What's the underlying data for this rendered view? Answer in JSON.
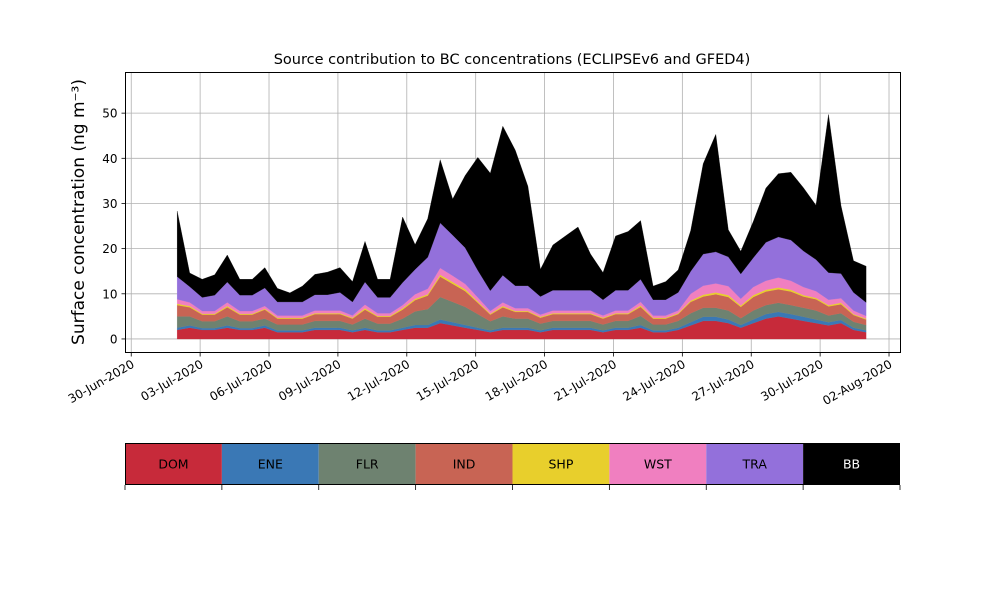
{
  "chart_data": {
    "type": "area",
    "stacked": true,
    "title": "Source contribution to BC concentrations (ECLIPSEv6 and GFED4)",
    "ylabel": "Surface concentration (ng m⁻³)",
    "xlabel": "",
    "x_start": "2020-07-02",
    "x_end": "2020-08-01",
    "xlim": [
      "2020-06-29T18:00",
      "2020-08-02T12:00"
    ],
    "ylim": [
      -3,
      59
    ],
    "xticks": [
      "30-Jun-2020",
      "03-Jul-2020",
      "06-Jul-2020",
      "09-Jul-2020",
      "12-Jul-2020",
      "15-Jul-2020",
      "18-Jul-2020",
      "21-Jul-2020",
      "24-Jul-2020",
      "27-Jul-2020",
      "30-Jul-2020",
      "02-Aug-2020"
    ],
    "yticks": [
      0,
      10,
      20,
      30,
      40,
      50
    ],
    "grid": true,
    "legend_position": "bottom",
    "series": [
      {
        "name": "DOM",
        "color": "#c72a3a",
        "values": [
          2,
          2.5,
          2,
          2,
          2.5,
          2,
          2,
          2.5,
          1.5,
          1.5,
          1.5,
          2,
          2,
          2,
          1.5,
          2,
          1.5,
          1.5,
          2,
          2.5,
          2.5,
          3.5,
          3,
          2.5,
          2,
          1.5,
          2,
          2,
          2,
          1.5,
          2,
          2,
          2,
          2,
          1.5,
          2,
          2,
          2.5,
          1.5,
          1.5,
          2,
          3,
          4,
          4,
          3.5,
          2.5,
          3.5,
          4.5,
          5,
          4.5,
          4,
          3.5,
          3,
          3.5,
          2,
          1.5
        ]
      },
      {
        "name": "ENE",
        "color": "#3a78b5",
        "values": [
          0.5,
          0.5,
          0.4,
          0.4,
          0.5,
          0.4,
          0.4,
          0.5,
          0.4,
          0.4,
          0.4,
          0.5,
          0.5,
          0.5,
          0.4,
          0.5,
          0.4,
          0.4,
          0.5,
          0.6,
          0.6,
          0.8,
          0.7,
          0.6,
          0.5,
          0.4,
          0.5,
          0.5,
          0.5,
          0.4,
          0.5,
          0.5,
          0.5,
          0.5,
          0.4,
          0.5,
          0.5,
          0.6,
          0.4,
          0.4,
          0.5,
          0.7,
          0.9,
          0.9,
          0.8,
          0.6,
          0.8,
          1,
          1,
          1,
          0.9,
          0.8,
          0.7,
          0.7,
          0.5,
          0.4
        ]
      },
      {
        "name": "FLR",
        "color": "#6e8270",
        "values": [
          2.5,
          2,
          1.5,
          1.5,
          2,
          1.5,
          1.5,
          1.5,
          1.3,
          1.3,
          1.3,
          1.5,
          1.5,
          1.5,
          1.3,
          2,
          1.5,
          1.5,
          2,
          3,
          3.5,
          5,
          4.5,
          4,
          3,
          2,
          2.5,
          2,
          2,
          1.5,
          1.5,
          1.5,
          1.5,
          1.5,
          1.3,
          1.5,
          1.5,
          2,
          1.3,
          1.3,
          1.5,
          2,
          2,
          2,
          2,
          1.5,
          2,
          2,
          2,
          2,
          2,
          2,
          1.5,
          1.5,
          1.3,
          1.2
        ]
      },
      {
        "name": "IND",
        "color": "#c86454",
        "values": [
          2.5,
          2,
          1.5,
          1.5,
          2,
          1.5,
          1.5,
          2,
          1.3,
          1.3,
          1.3,
          1.5,
          1.5,
          1.5,
          1.3,
          2,
          1.5,
          1.5,
          2,
          2.5,
          3,
          4.5,
          4,
          3.5,
          2.5,
          1.5,
          2,
          1.5,
          1.5,
          1.3,
          1.5,
          1.5,
          1.5,
          1.5,
          1.3,
          1.5,
          1.5,
          2,
          1.3,
          1.3,
          1.5,
          2.5,
          2.5,
          3,
          3,
          2.5,
          3,
          3,
          3,
          3,
          2.5,
          2.5,
          2,
          2,
          1.5,
          1.2
        ]
      },
      {
        "name": "SHP",
        "color": "#e8cf2c",
        "values": [
          0.3,
          0.3,
          0.2,
          0.2,
          0.3,
          0.2,
          0.2,
          0.2,
          0.2,
          0.2,
          0.2,
          0.2,
          0.2,
          0.2,
          0.2,
          0.3,
          0.2,
          0.2,
          0.3,
          0.3,
          0.3,
          0.4,
          0.4,
          0.4,
          0.3,
          0.2,
          0.3,
          0.2,
          0.2,
          0.2,
          0.2,
          0.2,
          0.2,
          0.2,
          0.2,
          0.2,
          0.2,
          0.3,
          0.2,
          0.2,
          0.2,
          0.3,
          0.4,
          0.4,
          0.4,
          0.3,
          0.4,
          0.4,
          0.4,
          0.4,
          0.3,
          0.3,
          0.3,
          0.3,
          0.2,
          0.2
        ]
      },
      {
        "name": "WST",
        "color": "#f07fc0",
        "values": [
          1,
          0.8,
          0.6,
          0.6,
          0.8,
          0.6,
          0.6,
          0.6,
          0.5,
          0.5,
          0.5,
          0.6,
          0.6,
          0.6,
          0.5,
          0.8,
          0.6,
          0.6,
          0.7,
          1,
          1.2,
          1.5,
          1.4,
          1.2,
          0.9,
          0.6,
          0.8,
          0.6,
          0.6,
          0.5,
          0.6,
          0.6,
          0.6,
          0.6,
          0.5,
          0.6,
          0.6,
          0.8,
          0.5,
          0.5,
          0.6,
          1.5,
          2,
          2,
          2,
          1.5,
          1.8,
          2,
          2.2,
          2,
          1.8,
          1.5,
          1.2,
          1,
          0.8,
          0.6
        ]
      },
      {
        "name": "TRA",
        "color": "#9370db",
        "values": [
          5,
          3.5,
          3,
          3.5,
          4.5,
          3.5,
          3.5,
          4,
          3,
          3,
          3,
          3.5,
          3.5,
          4,
          3,
          5,
          3.5,
          3.5,
          5,
          5.5,
          7,
          10,
          9,
          8,
          6,
          4.5,
          6,
          5,
          5,
          4,
          4.5,
          4.5,
          4.5,
          4.5,
          3.5,
          4.5,
          4.5,
          5,
          3.5,
          3.5,
          4,
          5,
          7,
          7,
          6.5,
          5.5,
          6.5,
          8.5,
          9,
          9,
          8,
          7,
          6,
          5.5,
          4,
          3
        ]
      },
      {
        "name": "BB",
        "color": "#000000",
        "values": [
          14.5,
          3,
          4,
          4.5,
          6,
          3.5,
          3.5,
          4.5,
          3,
          2,
          3.5,
          4.5,
          5,
          5.5,
          4.5,
          9,
          4,
          4,
          14.5,
          5.5,
          8.5,
          14,
          8,
          16,
          25,
          26,
          33,
          30,
          22,
          6,
          10,
          12,
          14,
          8,
          6,
          12,
          13,
          13,
          3,
          4,
          5,
          9,
          20,
          26,
          6,
          5,
          8,
          12,
          14,
          15,
          14,
          12,
          35,
          15,
          7,
          8
        ]
      }
    ],
    "legend": [
      {
        "name": "DOM",
        "color": "#c72a3a",
        "text_color": "#000000"
      },
      {
        "name": "ENE",
        "color": "#3a78b5",
        "text_color": "#000000"
      },
      {
        "name": "FLR",
        "color": "#6e8270",
        "text_color": "#000000"
      },
      {
        "name": "IND",
        "color": "#c86454",
        "text_color": "#000000"
      },
      {
        "name": "SHP",
        "color": "#e8cf2c",
        "text_color": "#000000"
      },
      {
        "name": "WST",
        "color": "#f07fc0",
        "text_color": "#000000"
      },
      {
        "name": "TRA",
        "color": "#9370db",
        "text_color": "#000000"
      },
      {
        "name": "BB",
        "color": "#000000",
        "text_color": "#ffffff"
      }
    ]
  }
}
